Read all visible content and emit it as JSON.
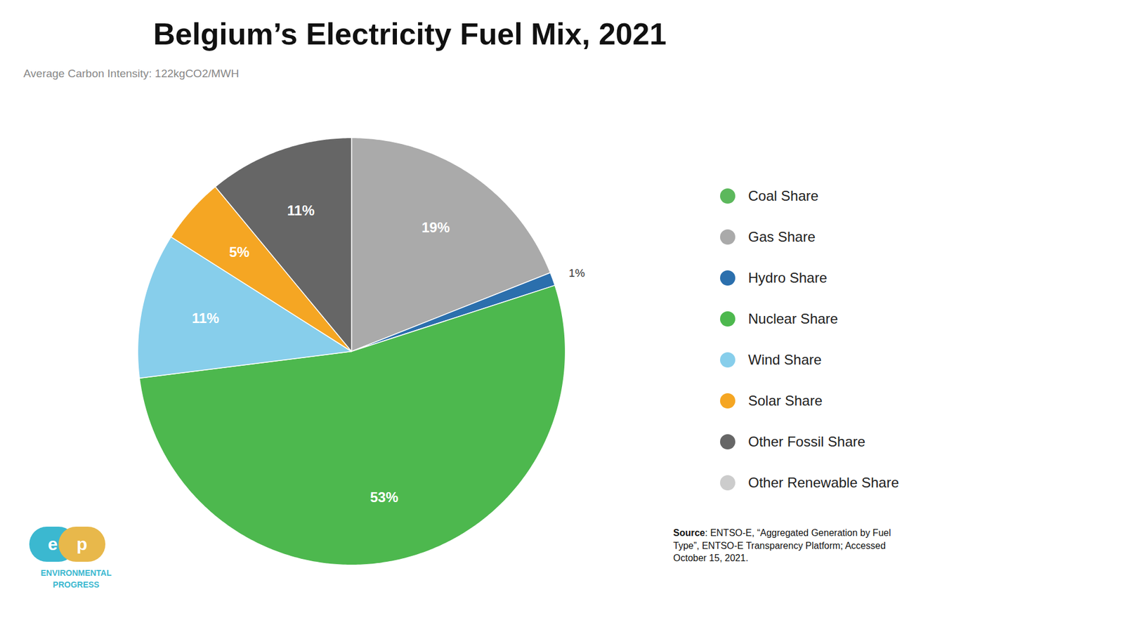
{
  "chart_data": {
    "type": "pie",
    "title": "Belgium’s Electricity Fuel Mix, 2021",
    "categories": [
      "Coal Share",
      "Gas Share",
      "Hydro Share",
      "Nuclear Share",
      "Wind Share",
      "Solar Share",
      "Other Fossil Share",
      "Other Renewable Share"
    ],
    "values": [
      0,
      19,
      1,
      53,
      11,
      5,
      11,
      0
    ],
    "value_labels": [
      null,
      "19%",
      "1%",
      "53%",
      "11%",
      "5%",
      "11%",
      null
    ],
    "colors": [
      "#5cb85c",
      "#aaaaaa",
      "#2b6fad",
      "#4db84e",
      "#87ceeb",
      "#f5a623",
      "#666666",
      "#cccccc"
    ],
    "data_labels": true,
    "legend": "right",
    "annotations": [
      {
        "text": "Average Carbon Intensity: 122kgCO2/MWH",
        "color": "#888888"
      },
      {
        "text": "Source: ENTSO-E, “Aggregated Generation by Fuel\nType”, ENTSO-E Transparency Platform; Accessed\nOctober 15, 2021.",
        "color": "#111111"
      },
      {
        "text": "e",
        "color": "#3bb8d0"
      },
      {
        "text": "p",
        "color": "#e8b84b"
      },
      {
        "text": "ENVIRONMENTAL\nPROGRESS",
        "color": "#3bb8d0"
      }
    ]
  }
}
